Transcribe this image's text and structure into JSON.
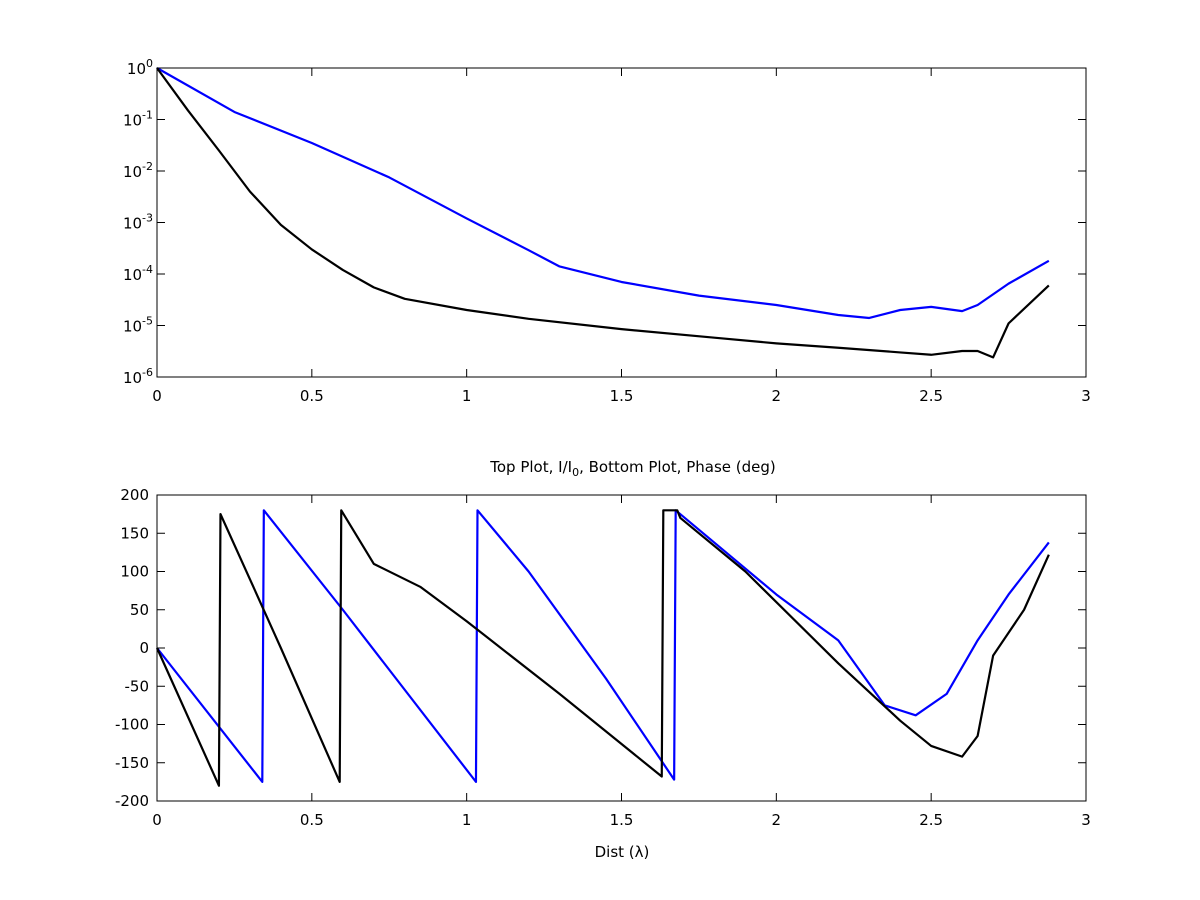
{
  "chart_data": [
    {
      "type": "line",
      "title": "",
      "xlabel": "",
      "ylabel": "",
      "xlim": [
        0,
        3
      ],
      "ylim": [
        1e-06,
        1
      ],
      "yscale": "log",
      "grid": false,
      "legend": "none",
      "x_ticks": [
        "0",
        "0.5",
        "1",
        "1.5",
        "2",
        "2.5",
        "3"
      ],
      "y_ticks": [
        {
          "base": "10",
          "exp": "-6"
        },
        {
          "base": "10",
          "exp": "-5"
        },
        {
          "base": "10",
          "exp": "-4"
        },
        {
          "base": "10",
          "exp": "-3"
        },
        {
          "base": "10",
          "exp": "-2"
        },
        {
          "base": "10",
          "exp": "-1"
        },
        {
          "base": "10",
          "exp": "0"
        }
      ],
      "series": [
        {
          "color": "#0000ff",
          "points": [
            [
              0.0,
              1.0
            ],
            [
              0.25,
              0.14
            ],
            [
              0.5,
              0.035
            ],
            [
              0.75,
              0.0075
            ],
            [
              1.0,
              0.0012
            ],
            [
              1.2,
              0.00029
            ],
            [
              1.3,
              0.00014
            ],
            [
              1.5,
              7e-05
            ],
            [
              1.75,
              3.8e-05
            ],
            [
              2.0,
              2.5e-05
            ],
            [
              2.2,
              1.6e-05
            ],
            [
              2.3,
              1.4e-05
            ],
            [
              2.4,
              2e-05
            ],
            [
              2.5,
              2.3e-05
            ],
            [
              2.6,
              1.9e-05
            ],
            [
              2.65,
              2.5e-05
            ],
            [
              2.75,
              6.5e-05
            ],
            [
              2.88,
              0.00018
            ]
          ]
        },
        {
          "color": "#000000",
          "points": [
            [
              0.0,
              1.0
            ],
            [
              0.1,
              0.15
            ],
            [
              0.2,
              0.025
            ],
            [
              0.3,
              0.004
            ],
            [
              0.4,
              0.0009
            ],
            [
              0.5,
              0.0003
            ],
            [
              0.6,
              0.00012
            ],
            [
              0.7,
              5.5e-05
            ],
            [
              0.8,
              3.3e-05
            ],
            [
              1.0,
              2e-05
            ],
            [
              1.2,
              1.35e-05
            ],
            [
              1.5,
              8.5e-06
            ],
            [
              1.8,
              5.8e-06
            ],
            [
              2.0,
              4.5e-06
            ],
            [
              2.2,
              3.7e-06
            ],
            [
              2.4,
              3e-06
            ],
            [
              2.5,
              2.7e-06
            ],
            [
              2.6,
              3.2e-06
            ],
            [
              2.65,
              3.2e-06
            ],
            [
              2.7,
              2.4e-06
            ],
            [
              2.75,
              1.1e-05
            ],
            [
              2.88,
              6e-05
            ]
          ]
        }
      ]
    },
    {
      "type": "line",
      "title": "Top Plot, I/I",
      "title_sub": "0",
      "title_suffix": ", Bottom Plot, Phase (deg)",
      "xlabel": "Dist (λ)",
      "ylabel": "",
      "xlim": [
        0,
        3
      ],
      "ylim": [
        -200,
        200
      ],
      "grid": false,
      "legend": "none",
      "x_ticks": [
        "0",
        "0.5",
        "1",
        "1.5",
        "2",
        "2.5",
        "3"
      ],
      "y_ticks": [
        "-200",
        "-150",
        "-100",
        "-50",
        "0",
        "50",
        "100",
        "150",
        "200"
      ],
      "series": [
        {
          "color": "#0000ff",
          "points": [
            [
              0.0,
              0
            ],
            [
              0.34,
              -175
            ],
            [
              0.345,
              180
            ],
            [
              0.6,
              50
            ],
            [
              1.03,
              -175
            ],
            [
              1.035,
              180
            ],
            [
              1.2,
              100
            ],
            [
              1.45,
              -40
            ],
            [
              1.67,
              -172
            ],
            [
              1.675,
              180
            ],
            [
              2.0,
              70
            ],
            [
              2.2,
              10
            ],
            [
              2.35,
              -75
            ],
            [
              2.45,
              -88
            ],
            [
              2.55,
              -60
            ],
            [
              2.65,
              10
            ],
            [
              2.75,
              70
            ],
            [
              2.88,
              138
            ]
          ]
        },
        {
          "color": "#000000",
          "points": [
            [
              0.0,
              0
            ],
            [
              0.2,
              -180
            ],
            [
              0.205,
              175
            ],
            [
              0.3,
              90
            ],
            [
              0.4,
              0
            ],
            [
              0.59,
              -175
            ],
            [
              0.595,
              180
            ],
            [
              0.7,
              110
            ],
            [
              0.85,
              80
            ],
            [
              1.0,
              35
            ],
            [
              1.3,
              -60
            ],
            [
              1.63,
              -168
            ],
            [
              1.635,
              180
            ],
            [
              1.68,
              180
            ],
            [
              1.69,
              170
            ],
            [
              1.9,
              100
            ],
            [
              2.2,
              -20
            ],
            [
              2.4,
              -95
            ],
            [
              2.5,
              -128
            ],
            [
              2.6,
              -142
            ],
            [
              2.65,
              -115
            ],
            [
              2.7,
              -10
            ],
            [
              2.8,
              50
            ],
            [
              2.88,
              122
            ]
          ]
        }
      ]
    }
  ]
}
